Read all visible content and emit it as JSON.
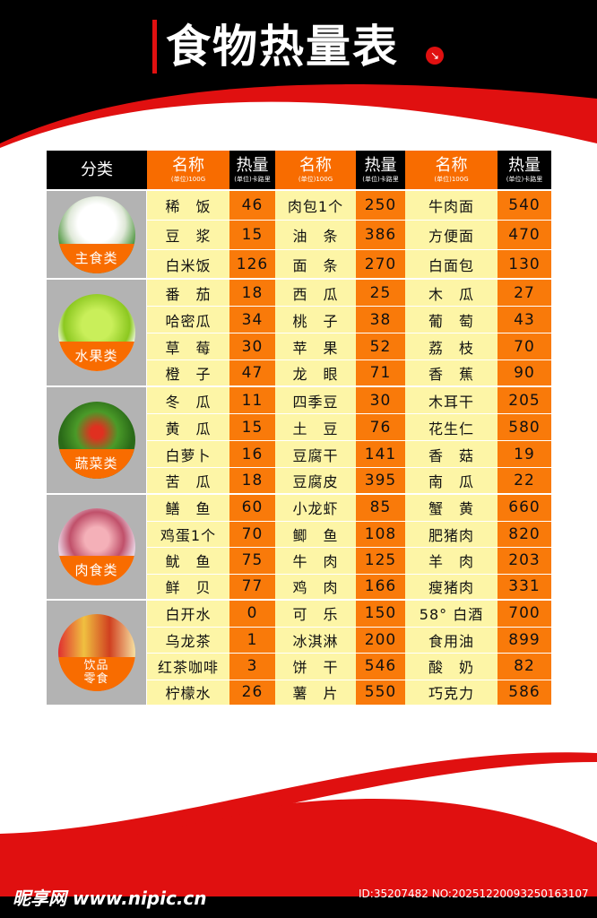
{
  "title": "食物热量表",
  "header": {
    "category": "分类",
    "name": "名称",
    "name_unit": "(单位)100G",
    "cal": "热量",
    "cal_unit": "(单位)卡路里"
  },
  "groups": [
    {
      "label": "主食类",
      "image": "steamed-bun",
      "rows": [
        [
          "稀　饭",
          "46",
          "肉包1个",
          "250",
          "牛肉面",
          "540"
        ],
        [
          "豆　浆",
          "15",
          "油　条",
          "386",
          "方便面",
          "470"
        ],
        [
          "白米饭",
          "126",
          "面　条",
          "270",
          "白面包",
          "130"
        ]
      ]
    },
    {
      "label": "水果类",
      "image": "green-apple",
      "rows": [
        [
          "番　茄",
          "18",
          "西　瓜",
          "25",
          "木　瓜",
          "27"
        ],
        [
          "哈密瓜",
          "34",
          "桃　子",
          "38",
          "葡　萄",
          "43"
        ],
        [
          "草　莓",
          "30",
          "苹　果",
          "52",
          "荔　枝",
          "70"
        ],
        [
          "橙　子",
          "47",
          "龙　眼",
          "71",
          "香　蕉",
          "90"
        ]
      ]
    },
    {
      "label": "蔬菜类",
      "image": "vegetables",
      "rows": [
        [
          "冬　瓜",
          "11",
          "四季豆",
          "30",
          "木耳干",
          "205"
        ],
        [
          "黄　瓜",
          "15",
          "土　豆",
          "76",
          "花生仁",
          "580"
        ],
        [
          "白萝卜",
          "16",
          "豆腐干",
          "141",
          "香　菇",
          "19"
        ],
        [
          "苦　瓜",
          "18",
          "豆腐皮",
          "395",
          "南　瓜",
          "22"
        ]
      ]
    },
    {
      "label": "肉食类",
      "image": "ham",
      "rows": [
        [
          "鳝　鱼",
          "60",
          "小龙虾",
          "85",
          "蟹　黄",
          "660"
        ],
        [
          "鸡蛋1个",
          "70",
          "鲫　鱼",
          "108",
          "肥猪肉",
          "820"
        ],
        [
          "鱿　鱼",
          "75",
          "牛　肉",
          "125",
          "羊　肉",
          "203"
        ],
        [
          "鲜　贝",
          "77",
          "鸡　肉",
          "166",
          "瘦猪肉",
          "331"
        ]
      ]
    },
    {
      "label": "饮品零食",
      "label_lines": [
        "饮品",
        "零食"
      ],
      "image": "drinks-snacks",
      "rows": [
        [
          "白开水",
          "0",
          "可　乐",
          "150",
          "58° 白酒",
          "700"
        ],
        [
          "乌龙茶",
          "1",
          "冰淇淋",
          "200",
          "食用油",
          "899"
        ],
        [
          "红茶咖啡",
          "3",
          "饼　干",
          "546",
          "酸　奶",
          "82"
        ],
        [
          "柠檬水",
          "26",
          "薯　片",
          "550",
          "巧克力",
          "586"
        ]
      ]
    }
  ],
  "footer": {
    "watermark": "昵享网 www.nipic.cn",
    "id": "ID:35207482 NO:20251220093250163107"
  },
  "colors": {
    "orange": "#f86c00",
    "yellow": "#fdf5a6",
    "red": "#e01010",
    "gray": "#b3b3b3"
  }
}
